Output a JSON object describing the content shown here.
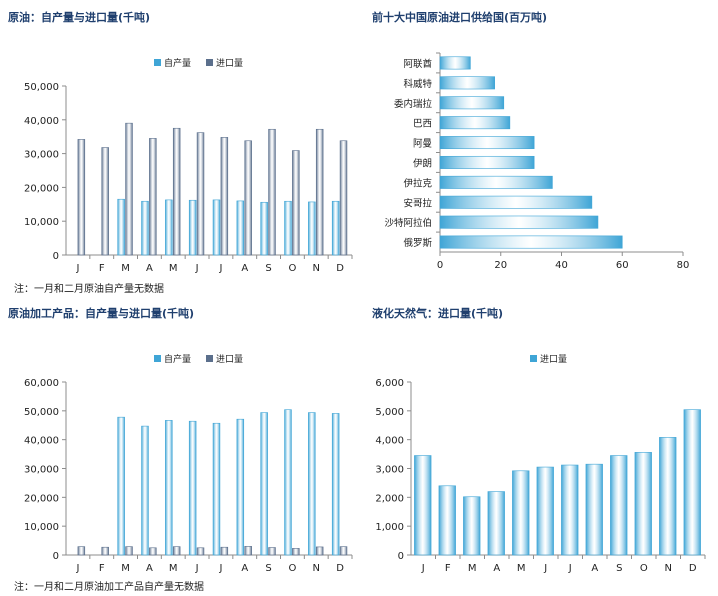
{
  "colors": {
    "domestic": "#3fa5d6",
    "import": "#5b6f8c",
    "lng": "#3fa5d6",
    "supplier": "#3fa5d6",
    "axis": "#8c8c8c",
    "title": "#1f3f6e"
  },
  "months": [
    "J",
    "F",
    "M",
    "A",
    "M",
    "J",
    "J",
    "A",
    "S",
    "O",
    "N",
    "D"
  ],
  "chart_data": [
    {
      "id": "crude",
      "type": "bar",
      "title": "原油：自产量与进口量(千吨)",
      "categories": [
        "J",
        "F",
        "M",
        "A",
        "M",
        "J",
        "J",
        "A",
        "S",
        "O",
        "N",
        "D"
      ],
      "series": [
        {
          "name": "自产量",
          "values": [
            null,
            null,
            16500,
            15900,
            16300,
            16200,
            16300,
            16000,
            15600,
            15900,
            15700,
            15900
          ]
        },
        {
          "name": "进口量",
          "values": [
            34200,
            31800,
            39000,
            34500,
            37500,
            36200,
            34800,
            33800,
            37200,
            30900,
            37200,
            33800
          ]
        }
      ],
      "ylim": [
        0,
        50000
      ],
      "yticks": [
        "0",
        "10,000",
        "20,000",
        "30,000",
        "40,000",
        "50,000"
      ],
      "legend": "top-center",
      "note": "注：一月和二月原油自产量无数据"
    },
    {
      "id": "suppliers",
      "type": "bar",
      "orientation": "horizontal",
      "title": "前十大中国原油进口供给国(百万吨)",
      "categories": [
        "阿联酋",
        "科威特",
        "委内瑞拉",
        "巴西",
        "阿曼",
        "伊朗",
        "伊拉克",
        "安哥拉",
        "沙特阿拉伯",
        "俄罗斯"
      ],
      "values": [
        10,
        18,
        21,
        23,
        31,
        31,
        37,
        50,
        52,
        60
      ],
      "xlim": [
        0,
        80
      ],
      "xticks": [
        "0",
        "20",
        "40",
        "60",
        "80"
      ]
    },
    {
      "id": "products",
      "type": "bar",
      "title": "原油加工产品：自产量与进口量(千吨)",
      "categories": [
        "J",
        "F",
        "M",
        "A",
        "M",
        "J",
        "J",
        "A",
        "S",
        "O",
        "N",
        "D"
      ],
      "series": [
        {
          "name": "自产量",
          "values": [
            null,
            null,
            47800,
            44700,
            46700,
            46400,
            45700,
            47100,
            49400,
            50400,
            49400,
            49100
          ]
        },
        {
          "name": "进口量",
          "values": [
            2900,
            2700,
            2900,
            2500,
            2900,
            2500,
            2700,
            3000,
            2600,
            2300,
            2800,
            2900
          ]
        }
      ],
      "ylim": [
        0,
        60000
      ],
      "yticks": [
        "0",
        "10,000",
        "20,000",
        "30,000",
        "40,000",
        "50,000",
        "60,000"
      ],
      "legend": "top-center",
      "note": "注：一月和二月原油加工产品自产量无数据"
    },
    {
      "id": "lng",
      "type": "bar",
      "title": "液化天然气：进口量(千吨)",
      "categories": [
        "J",
        "F",
        "M",
        "A",
        "M",
        "J",
        "J",
        "A",
        "S",
        "O",
        "N",
        "D"
      ],
      "series": [
        {
          "name": "进口量",
          "values": [
            3450,
            2400,
            2020,
            2200,
            2920,
            3050,
            3120,
            3150,
            3450,
            3560,
            4080,
            5040
          ]
        }
      ],
      "ylim": [
        0,
        6000
      ],
      "yticks": [
        "0",
        "1,000",
        "2,000",
        "3,000",
        "4,000",
        "5,000",
        "6,000"
      ],
      "legend": "top-center"
    }
  ]
}
